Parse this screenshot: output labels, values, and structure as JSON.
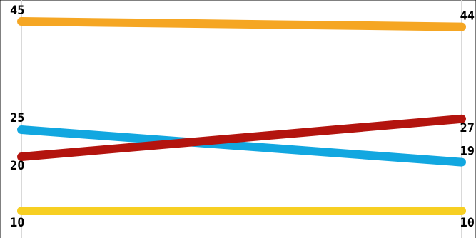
{
  "chart_data": {
    "type": "line",
    "title": "",
    "xlabel": "",
    "ylabel": "",
    "ylim": [
      5,
      50
    ],
    "grid": false,
    "legend": "none",
    "x": [
      0,
      1
    ],
    "series": [
      {
        "values": [
          45,
          44
        ],
        "color": "#F5A623",
        "labels": {
          "start": "45",
          "end": "44"
        }
      },
      {
        "values": [
          25,
          19
        ],
        "color": "#12A7E0",
        "labels": {
          "start": "25",
          "end": "19"
        }
      },
      {
        "values": [
          20,
          27
        ],
        "color": "#B3140E",
        "labels": {
          "start": "20",
          "end": "27"
        }
      },
      {
        "values": [
          10,
          10
        ],
        "color": "#F7CF22",
        "labels": {
          "start": "10",
          "end": "10"
        }
      }
    ]
  }
}
